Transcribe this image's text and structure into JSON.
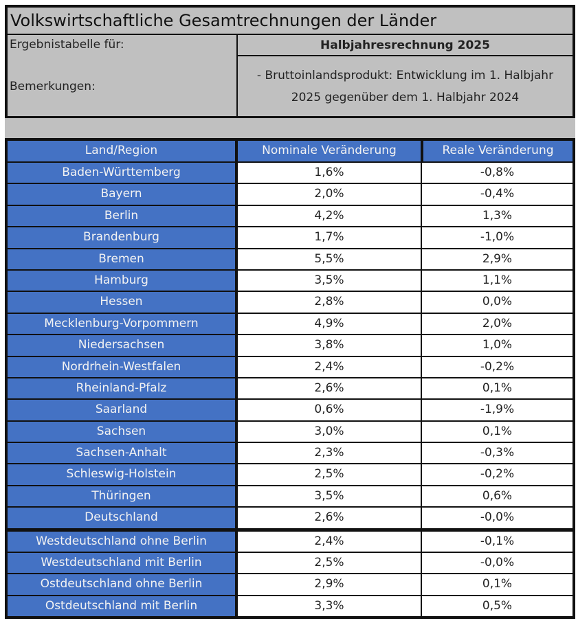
{
  "header": {
    "title": "Volkswirtschaftliche Gesamtrechnungen der Länder",
    "result_label": "Ergebnistabelle für:",
    "result_value": "Halbjahresrechnung 2025",
    "remarks_label": "Bemerkungen:",
    "remarks_value": "- Bruttoinlandsprodukt: Entwicklung im 1. Halbjahr 2025 gegenüber dem 1. Halbjahr 2024"
  },
  "table": {
    "columns": [
      "Land/Region",
      "Nominale Veränderung",
      "Reale Veränderung"
    ],
    "rows": [
      [
        "Baden-Württemberg",
        "1,6%",
        "-0,8%"
      ],
      [
        "Bayern",
        "2,0%",
        "-0,4%"
      ],
      [
        "Berlin",
        "4,2%",
        "1,3%"
      ],
      [
        "Brandenburg",
        "1,7%",
        "-1,0%"
      ],
      [
        "Bremen",
        "5,5%",
        "2,9%"
      ],
      [
        "Hamburg",
        "3,5%",
        "1,1%"
      ],
      [
        "Hessen",
        "2,8%",
        "0,0%"
      ],
      [
        "Mecklenburg-Vorpommern",
        "4,9%",
        "2,0%"
      ],
      [
        "Niedersachsen",
        "3,8%",
        "1,0%"
      ],
      [
        "Nordrhein-Westfalen",
        "2,4%",
        "-0,2%"
      ],
      [
        "Rheinland-Pfalz",
        "2,6%",
        "0,1%"
      ],
      [
        "Saarland",
        "0,6%",
        "-1,9%"
      ],
      [
        "Sachsen",
        "3,0%",
        "0,1%"
      ],
      [
        "Sachsen-Anhalt",
        "2,3%",
        "-0,3%"
      ],
      [
        "Schleswig-Holstein",
        "2,5%",
        "-0,2%"
      ],
      [
        "Thüringen",
        "3,5%",
        "0,6%"
      ],
      [
        "Deutschland",
        "2,6%",
        "-0,0%"
      ],
      [
        "Westdeutschland ohne Berlin",
        "2,4%",
        "-0,1%"
      ],
      [
        "Westdeutschland mit Berlin",
        "2,5%",
        "-0,0%"
      ],
      [
        "Ostdeutschland ohne Berlin",
        "2,9%",
        "0,1%"
      ],
      [
        "Ostdeutschland mit Berlin",
        "3,3%",
        "0,5%"
      ]
    ]
  }
}
